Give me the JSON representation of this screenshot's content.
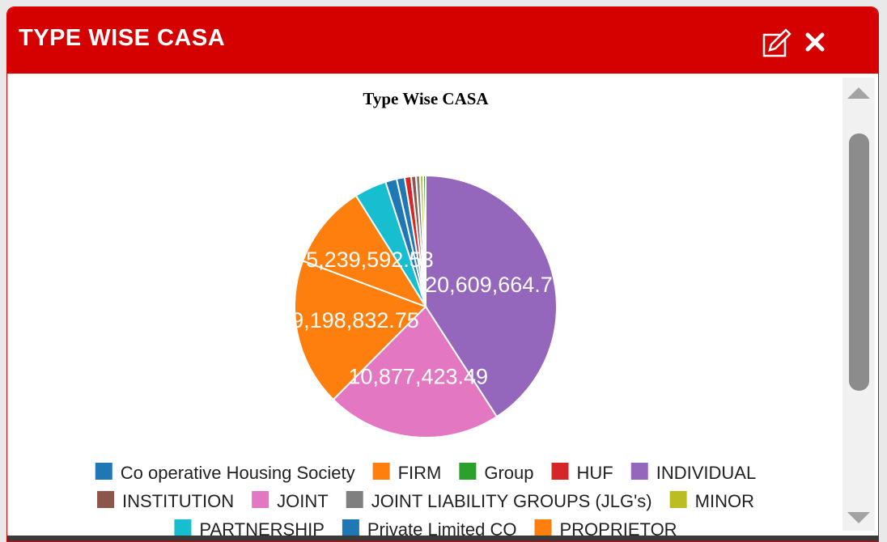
{
  "header": {
    "title": "TYPE WISE CASA"
  },
  "chart_data": {
    "type": "pie",
    "title": "Type Wise CASA",
    "categories": [
      "Co operative Housing Society",
      "FIRM",
      "Group",
      "HUF",
      "INDIVIDUAL",
      "INSTITUTION",
      "JOINT",
      "JOINT LIABILITY GROUPS (JLG's)",
      "MINOR",
      "PARTNERSHIP",
      "Private Limited CO",
      "PROPRIETOR"
    ],
    "values": [
      500000,
      9198832.75,
      150000,
      400000,
      20609664.77,
      300000,
      10877423.49,
      250000,
      200000,
      2000000,
      700000,
      5239592.53
    ],
    "value_labels": [
      null,
      "9,198,832.75",
      null,
      null,
      "20,609,664.77",
      null,
      "10,877,423.49",
      null,
      null,
      null,
      null,
      "5,239,592.53"
    ],
    "colors": [
      "#1f77b4",
      "#ff7f0e",
      "#2ca02c",
      "#d62728",
      "#9467bd",
      "#8c564b",
      "#e377c2",
      "#7f7f7f",
      "#bcbd22",
      "#17becf",
      "#1f77b4",
      "#ff7f0e"
    ],
    "legend": "bottom"
  }
}
